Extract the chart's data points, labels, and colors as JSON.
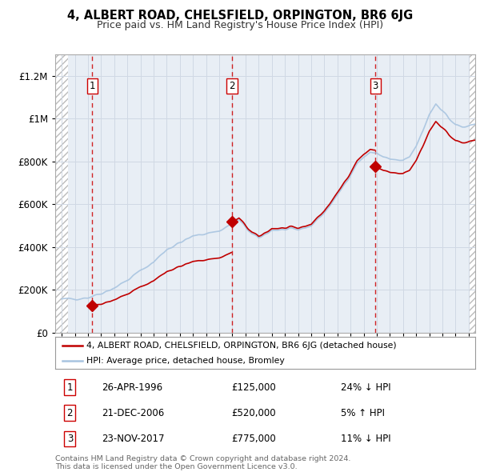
{
  "title": "4, ALBERT ROAD, CHELSFIELD, ORPINGTON, BR6 6JG",
  "subtitle": "Price paid vs. HM Land Registry's House Price Index (HPI)",
  "sale_dates_num": [
    1996.32,
    2006.97,
    2017.9
  ],
  "sale_prices": [
    125000,
    520000,
    775000
  ],
  "legend_line1": "4, ALBERT ROAD, CHELSFIELD, ORPINGTON, BR6 6JG (detached house)",
  "legend_line2": "HPI: Average price, detached house, Bromley",
  "footer1": "Contains HM Land Registry data © Crown copyright and database right 2024.",
  "footer2": "This data is licensed under the Open Government Licence v3.0.",
  "table": [
    {
      "num": "1",
      "date": "26-APR-1996",
      "price": "£125,000",
      "rel": "24% ↓ HPI"
    },
    {
      "num": "2",
      "date": "21-DEC-2006",
      "price": "£520,000",
      "rel": "5% ↑ HPI"
    },
    {
      "num": "3",
      "date": "23-NOV-2017",
      "price": "£775,000",
      "rel": "11% ↓ HPI"
    }
  ],
  "hpi_color": "#a8c4e0",
  "price_color": "#c00000",
  "marker_color": "#c00000",
  "dashed_color": "#cc0000",
  "ylim": [
    0,
    1300000
  ],
  "yticks": [
    0,
    200000,
    400000,
    600000,
    800000,
    1000000,
    1200000
  ],
  "xlim_start": 1993.5,
  "xlim_end": 2025.5,
  "hatch_left_end": 1994.5,
  "hatch_right_start": 2025.0,
  "bg_hatch_color": "#bbbbbb",
  "grid_color": "#d0d8e4",
  "plot_bg": "#e8eef5"
}
